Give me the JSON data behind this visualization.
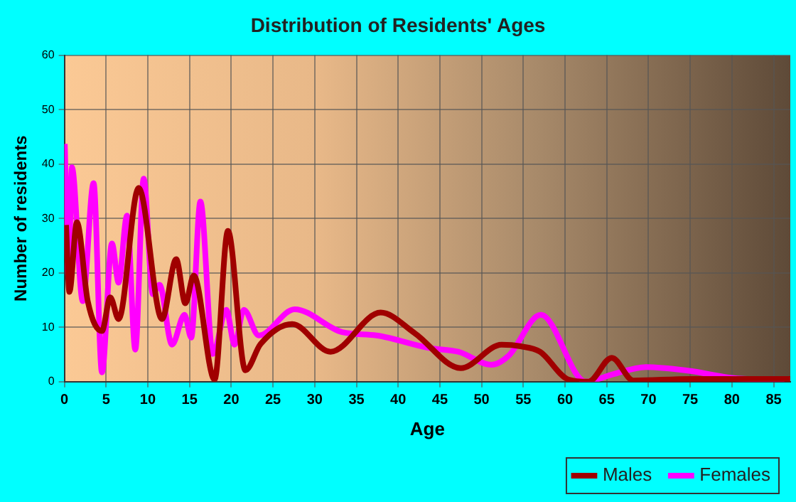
{
  "chart_data": {
    "type": "line",
    "title": "Distribution of Residents' Ages",
    "xlabel": "Age",
    "ylabel": "Number of residents",
    "xlim": [
      0,
      87
    ],
    "xticks": [
      0,
      5,
      10,
      15,
      20,
      25,
      30,
      35,
      40,
      45,
      50,
      55,
      60,
      65,
      70,
      75,
      80,
      85
    ],
    "ylim": [
      0,
      60
    ],
    "yticks": [
      0,
      10,
      20,
      30,
      40,
      50,
      60
    ],
    "grid": true,
    "legend": "bottom right",
    "marker": "none",
    "line_style": "solid",
    "series": [
      {
        "name": "Males",
        "color": "#a00000",
        "x": [
          0.2,
          0.6,
          1.5,
          2.8,
          4.5,
          5.5,
          6.5,
          8.9,
          11.7,
          13.4,
          14.5,
          15.5,
          18,
          19.6,
          21.7,
          23.5,
          27.3,
          31.9,
          37.9,
          42,
          47.5,
          52.4,
          54.7,
          57,
          60.4,
          62.8,
          65.6,
          68.2,
          75,
          87
        ],
        "values": [
          28.8,
          16.5,
          29.3,
          14.8,
          9.3,
          15.5,
          11.5,
          35.6,
          11.5,
          22.5,
          14.4,
          19.5,
          0.4,
          27.7,
          2.1,
          6.9,
          10.6,
          5.5,
          12.7,
          8.9,
          2.5,
          6.8,
          6.5,
          5.5,
          0.4,
          0,
          4.4,
          0.2,
          0.5,
          0.5
        ]
      },
      {
        "name": "Females",
        "color": "#ff00ff",
        "x": [
          0.05,
          0.5,
          0.9,
          2.2,
          3.5,
          4.5,
          5.7,
          6.5,
          7.5,
          8.5,
          9.5,
          10.6,
          11.4,
          12.9,
          14.4,
          15.2,
          16.3,
          17.8,
          19.4,
          20.4,
          21.5,
          23.3,
          27.6,
          33.3,
          37.4,
          43.7,
          47.2,
          51.2,
          53.2,
          57.1,
          62.5,
          65.6,
          69.7,
          74.9,
          80.6,
          86.3
        ],
        "values": [
          43.7,
          19,
          39.4,
          14.8,
          36.5,
          1.7,
          25.4,
          18.2,
          30.5,
          5.9,
          37.3,
          16.1,
          17.8,
          6.8,
          12.3,
          8.1,
          33.1,
          5.1,
          13.2,
          6.8,
          13.2,
          8.5,
          13.3,
          9.1,
          8.5,
          6.2,
          5.5,
          3.1,
          4.7,
          12.3,
          0,
          1.3,
          2.7,
          2,
          0.6,
          0.4
        ]
      }
    ]
  }
}
